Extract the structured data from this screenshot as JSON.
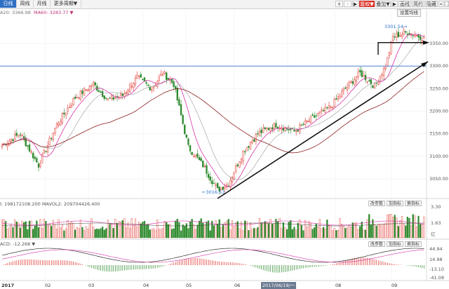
{
  "toolbar": {
    "tabs": [
      {
        "label": "日线",
        "active": true
      },
      {
        "label": "周线",
        "active": false
      },
      {
        "label": "月线",
        "active": false
      },
      {
        "label": "更多周期▼",
        "active": false
      }
    ],
    "right": [
      {
        "label": "+",
        "style": "plain"
      },
      {
        "label": "-",
        "style": "plain"
      },
      {
        "label": "▶",
        "style": "plain"
      },
      {
        "label": "复权▼",
        "style": "red"
      },
      {
        "label": "叠加▼",
        "style": "plain"
      },
      {
        "label": "▶",
        "style": "plain"
      },
      {
        "label": "画线",
        "style": "plain"
      },
      {
        "label": "简约",
        "style": "plain"
      },
      {
        "label": "隐藏",
        "style": "plain"
      },
      {
        "label": "»",
        "style": "plain"
      },
      {
        "label": "⛶",
        "style": "plain"
      }
    ]
  },
  "main_legend": {
    "ma20": "A20: 3366.98",
    "ma60": "MA60: 3283.77 ▼"
  },
  "settings_label": "设置均线",
  "price_axis": [
    "3350.00",
    "3300.00",
    "3250.00",
    "3200.00",
    "3150.00",
    "3100.00",
    "3050.00"
  ],
  "low_label": "3016.53",
  "high_label": "3301.54",
  "volume_legend": "l: 198172108.200  MAVOL2: 209704426.400",
  "volume_buttons": [
    "改参数",
    "加指标",
    "换指标"
  ],
  "volume_axis": [
    "3.30",
    "1.63",
    "亿"
  ],
  "macd_legend": "ACD: -12.268 ▼",
  "macd_buttons": [
    "改参数",
    "加指标",
    "换指标"
  ],
  "macd_axis": [
    "44.94",
    "14.98",
    "-13.10",
    "-41.08"
  ],
  "x_labels": [
    {
      "label": "2017",
      "bold": true
    },
    {
      "label": "02",
      "bold": false
    },
    {
      "label": "03",
      "bold": false
    },
    {
      "label": "04",
      "bold": false
    },
    {
      "label": "05",
      "bold": false
    },
    {
      "label": "06",
      "bold": false
    },
    {
      "label": "08",
      "bold": false
    },
    {
      "label": "09",
      "bold": false
    }
  ],
  "cursor_date": "2017/06/19/一",
  "colors": {
    "up": "#e0332a",
    "down": "#2d8a2d",
    "ma_fast": "#d633a8",
    "ma_slow": "#8b1d1d",
    "trend": "#111111",
    "hline": "#3a6fc9"
  }
}
